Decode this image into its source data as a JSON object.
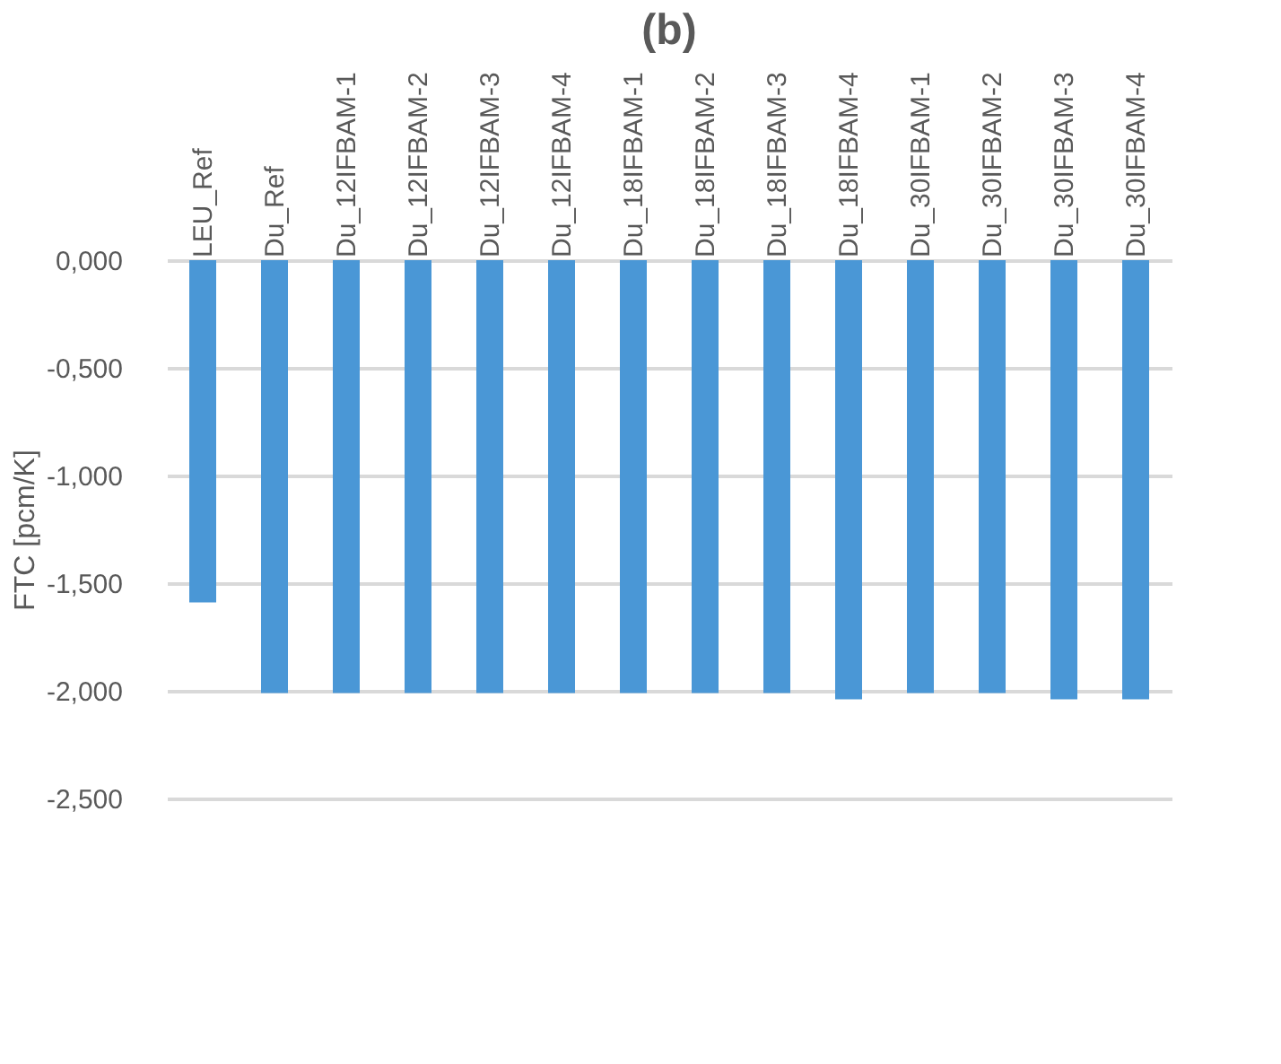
{
  "chart_data": {
    "type": "bar",
    "title": "(b)",
    "ylabel": "FTC [pcm/K]",
    "categories": [
      "LEU_Ref",
      "Du_Ref",
      "Du_12IFBAM-1",
      "Du_12IFBAM-2",
      "Du_12IFBAM-3",
      "Du_12IFBAM-4",
      "Du_18IFBAM-1",
      "Du_18IFBAM-2",
      "Du_18IFBAM-3",
      "Du_18IFBAM-4",
      "Du_30IFBAM-1",
      "Du_30IFBAM-2",
      "Du_30IFBAM-3",
      "Du_30IFBAM-4"
    ],
    "values": [
      -1.59,
      -2.01,
      -2.01,
      -2.01,
      -2.01,
      -2.01,
      -2.01,
      -2.01,
      -2.01,
      -2.04,
      -2.01,
      -2.01,
      -2.04,
      -2.04
    ],
    "color": "#4a97d6",
    "ylim": [
      -2.5,
      0
    ],
    "yticks": [
      {
        "value": 0,
        "label": "0,000"
      },
      {
        "value": -0.5,
        "label": "-0,500"
      },
      {
        "value": -1,
        "label": "-1,000"
      },
      {
        "value": -1.5,
        "label": "-1,500"
      },
      {
        "value": -2,
        "label": "-2,000"
      },
      {
        "value": -2.5,
        "label": "-2,500"
      }
    ],
    "grid": "y"
  }
}
